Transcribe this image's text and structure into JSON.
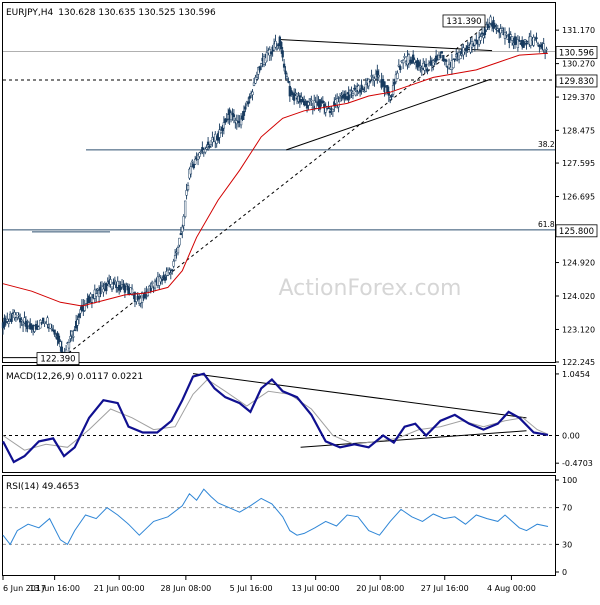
{
  "chart_data": [
    {
      "panel": "price",
      "type": "candlestick",
      "title": "EURJPY,H4",
      "ohlc_text": "130.628 130.635 130.525 130.596",
      "ylim": [
        122.245,
        131.9
      ],
      "y_ticks": [
        "131.170",
        "130.270",
        "129.370",
        "128.475",
        "127.595",
        "126.695",
        "125.800",
        "124.920",
        "124.020",
        "123.120",
        "122.245"
      ],
      "y_tick_values": [
        131.17,
        130.27,
        129.37,
        128.475,
        127.595,
        126.695,
        125.8,
        124.92,
        124.02,
        123.12,
        122.245
      ],
      "x_ticks": [
        "6 Jun 2017",
        "13 Jun 16:00",
        "21 Jun 00:00",
        "28 Jun 08:00",
        "5 Jul 16:00",
        "13 Jul 00:00",
        "20 Jul 08:00",
        "27 Jul 16:00",
        "4 Aug 00:00"
      ],
      "x_tick_pos": [
        0,
        72,
        162,
        255,
        346,
        436,
        526,
        616,
        709
      ],
      "n_bars": 760,
      "close_path": [
        [
          0,
          123.3
        ],
        [
          20,
          123.5
        ],
        [
          40,
          123.1
        ],
        [
          60,
          123.4
        ],
        [
          75,
          123.0
        ],
        [
          85,
          122.45
        ],
        [
          95,
          122.9
        ],
        [
          110,
          123.7
        ],
        [
          130,
          124.1
        ],
        [
          150,
          124.35
        ],
        [
          170,
          124.25
        ],
        [
          190,
          123.9
        ],
        [
          210,
          124.3
        ],
        [
          235,
          124.7
        ],
        [
          250,
          125.8
        ],
        [
          260,
          127.4
        ],
        [
          275,
          127.9
        ],
        [
          300,
          128.3
        ],
        [
          315,
          128.9
        ],
        [
          330,
          128.6
        ],
        [
          345,
          129.4
        ],
        [
          360,
          130.3
        ],
        [
          375,
          130.6
        ],
        [
          385,
          130.9
        ],
        [
          400,
          129.5
        ],
        [
          420,
          129.2
        ],
        [
          440,
          129.2
        ],
        [
          455,
          129.0
        ],
        [
          470,
          129.3
        ],
        [
          490,
          129.5
        ],
        [
          505,
          129.6
        ],
        [
          520,
          130.0
        ],
        [
          540,
          129.4
        ],
        [
          555,
          130.3
        ],
        [
          570,
          130.4
        ],
        [
          590,
          130.1
        ],
        [
          610,
          130.5
        ],
        [
          625,
          130.2
        ],
        [
          640,
          130.6
        ],
        [
          660,
          130.8
        ],
        [
          680,
          131.39
        ],
        [
          700,
          131.0
        ],
        [
          720,
          130.8
        ],
        [
          740,
          130.9
        ],
        [
          760,
          130.596
        ]
      ],
      "ma_path": [
        [
          0,
          124.35
        ],
        [
          40,
          124.15
        ],
        [
          80,
          123.85
        ],
        [
          110,
          123.75
        ],
        [
          140,
          123.9
        ],
        [
          170,
          124.05
        ],
        [
          200,
          124.1
        ],
        [
          230,
          124.25
        ],
        [
          250,
          124.7
        ],
        [
          270,
          125.6
        ],
        [
          300,
          126.6
        ],
        [
          330,
          127.4
        ],
        [
          360,
          128.3
        ],
        [
          390,
          128.8
        ],
        [
          420,
          129.0
        ],
        [
          450,
          129.1
        ],
        [
          480,
          129.2
        ],
        [
          510,
          129.4
        ],
        [
          540,
          129.5
        ],
        [
          570,
          129.7
        ],
        [
          600,
          129.9
        ],
        [
          630,
          130.0
        ],
        [
          660,
          130.1
        ],
        [
          690,
          130.3
        ],
        [
          720,
          130.5
        ],
        [
          760,
          130.55
        ]
      ],
      "current_price": "130.596",
      "current_price_value": 130.596,
      "level_dashed_value": 129.83,
      "level_dashed": "129.830",
      "fib_382_value": 127.95,
      "fib_382": "38.2",
      "fib_618_value": 125.8,
      "fib_618": "61.8",
      "fib_618_price": "125.800",
      "low_label": "122.390",
      "low_value": 122.39,
      "high_label": "131.390",
      "high_value": 131.39,
      "watermark": "ActionForex.com"
    },
    {
      "panel": "macd",
      "type": "line",
      "title": "MACD(12,26,9) 0.0117 0.0221",
      "y_ticks": [
        "1.0454",
        "0.00",
        "-0.4703"
      ],
      "y_tick_values": [
        1.0454,
        0.0,
        -0.4703
      ],
      "ylim": [
        -0.62,
        1.18
      ],
      "macd_path": [
        [
          0,
          -0.1
        ],
        [
          15,
          -0.45
        ],
        [
          30,
          -0.35
        ],
        [
          50,
          -0.1
        ],
        [
          70,
          -0.05
        ],
        [
          85,
          -0.35
        ],
        [
          100,
          -0.2
        ],
        [
          120,
          0.3
        ],
        [
          140,
          0.6
        ],
        [
          160,
          0.55
        ],
        [
          175,
          0.15
        ],
        [
          195,
          0.05
        ],
        [
          215,
          0.05
        ],
        [
          235,
          0.25
        ],
        [
          250,
          0.6
        ],
        [
          265,
          1.0
        ],
        [
          280,
          1.05
        ],
        [
          295,
          0.8
        ],
        [
          310,
          0.65
        ],
        [
          330,
          0.55
        ],
        [
          345,
          0.4
        ],
        [
          360,
          0.8
        ],
        [
          375,
          0.95
        ],
        [
          390,
          0.75
        ],
        [
          410,
          0.65
        ],
        [
          430,
          0.35
        ],
        [
          450,
          -0.1
        ],
        [
          470,
          -0.2
        ],
        [
          490,
          -0.15
        ],
        [
          510,
          -0.2
        ],
        [
          530,
          0.0
        ],
        [
          545,
          -0.12
        ],
        [
          560,
          0.15
        ],
        [
          575,
          0.2
        ],
        [
          590,
          0.0
        ],
        [
          610,
          0.25
        ],
        [
          630,
          0.35
        ],
        [
          650,
          0.2
        ],
        [
          670,
          0.1
        ],
        [
          690,
          0.2
        ],
        [
          705,
          0.4
        ],
        [
          720,
          0.3
        ],
        [
          740,
          0.05
        ],
        [
          760,
          0.01
        ]
      ],
      "signal_path": [
        [
          0,
          0.0
        ],
        [
          30,
          -0.25
        ],
        [
          60,
          -0.15
        ],
        [
          90,
          -0.2
        ],
        [
          120,
          0.1
        ],
        [
          150,
          0.45
        ],
        [
          180,
          0.3
        ],
        [
          210,
          0.1
        ],
        [
          240,
          0.15
        ],
        [
          265,
          0.7
        ],
        [
          285,
          0.95
        ],
        [
          310,
          0.75
        ],
        [
          340,
          0.5
        ],
        [
          370,
          0.75
        ],
        [
          400,
          0.7
        ],
        [
          430,
          0.45
        ],
        [
          460,
          0.0
        ],
        [
          490,
          -0.15
        ],
        [
          520,
          -0.1
        ],
        [
          550,
          -0.05
        ],
        [
          580,
          0.1
        ],
        [
          610,
          0.15
        ],
        [
          640,
          0.25
        ],
        [
          670,
          0.15
        ],
        [
          700,
          0.25
        ],
        [
          725,
          0.3
        ],
        [
          745,
          0.1
        ],
        [
          760,
          0.02
        ]
      ]
    },
    {
      "panel": "rsi",
      "type": "line",
      "title": "RSI(14) 49.4653",
      "y_ticks": [
        "100",
        "70",
        "30",
        "0"
      ],
      "y_tick_values": [
        100,
        70,
        30,
        0
      ],
      "ylim": [
        0,
        100
      ],
      "rsi_path": [
        [
          0,
          40
        ],
        [
          10,
          30
        ],
        [
          20,
          45
        ],
        [
          35,
          52
        ],
        [
          50,
          48
        ],
        [
          65,
          58
        ],
        [
          80,
          35
        ],
        [
          90,
          30
        ],
        [
          100,
          45
        ],
        [
          115,
          62
        ],
        [
          130,
          58
        ],
        [
          145,
          70
        ],
        [
          160,
          62
        ],
        [
          175,
          52
        ],
        [
          190,
          40
        ],
        [
          210,
          55
        ],
        [
          230,
          60
        ],
        [
          250,
          72
        ],
        [
          260,
          85
        ],
        [
          270,
          78
        ],
        [
          280,
          90
        ],
        [
          290,
          82
        ],
        [
          300,
          75
        ],
        [
          315,
          70
        ],
        [
          330,
          65
        ],
        [
          345,
          72
        ],
        [
          360,
          80
        ],
        [
          375,
          74
        ],
        [
          390,
          60
        ],
        [
          400,
          45
        ],
        [
          410,
          40
        ],
        [
          420,
          42
        ],
        [
          435,
          48
        ],
        [
          450,
          55
        ],
        [
          465,
          50
        ],
        [
          480,
          62
        ],
        [
          495,
          60
        ],
        [
          510,
          45
        ],
        [
          525,
          40
        ],
        [
          540,
          55
        ],
        [
          555,
          68
        ],
        [
          570,
          60
        ],
        [
          585,
          55
        ],
        [
          600,
          63
        ],
        [
          615,
          58
        ],
        [
          630,
          60
        ],
        [
          645,
          52
        ],
        [
          660,
          62
        ],
        [
          675,
          58
        ],
        [
          690,
          55
        ],
        [
          700,
          62
        ],
        [
          710,
          55
        ],
        [
          720,
          48
        ],
        [
          730,
          45
        ],
        [
          745,
          52
        ],
        [
          760,
          49.5
        ]
      ]
    }
  ]
}
